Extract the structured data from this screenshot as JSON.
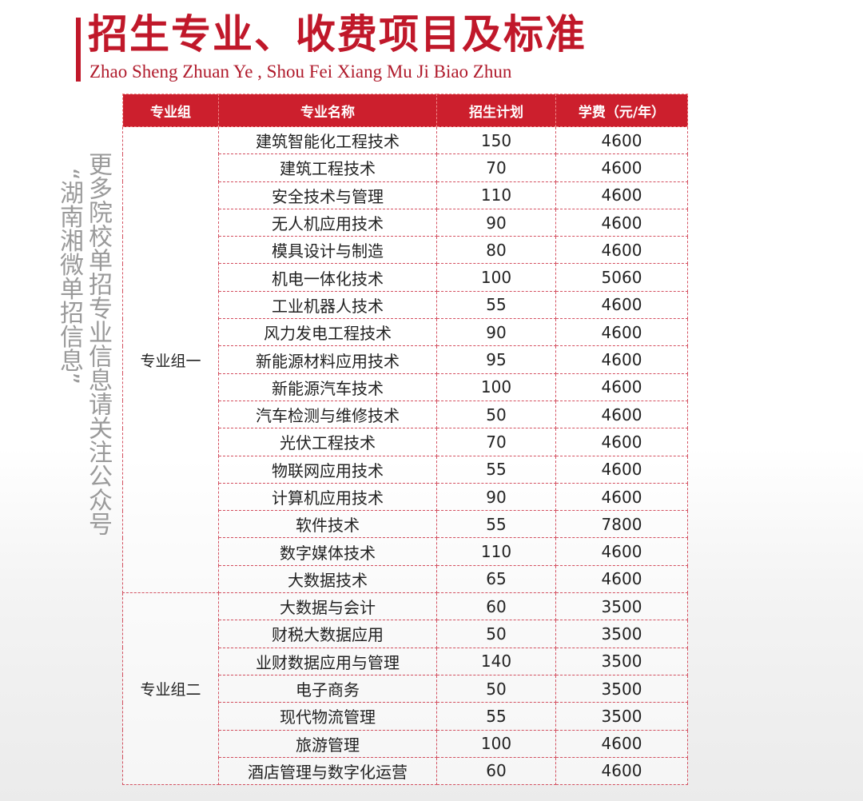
{
  "header": {
    "title": "招生专业、收费项目及标准",
    "subtitle": "Zhao Sheng Zhuan Ye , Shou Fei Xiang Mu Ji Biao Zhun"
  },
  "accent_color": "#c0182a",
  "table": {
    "columns": [
      "专业组",
      "专业名称",
      "招生计划",
      "学费（元/年）"
    ],
    "groups": [
      {
        "name": "专业组一",
        "rows": [
          [
            "建筑智能化工程技术",
            "150",
            "4600"
          ],
          [
            "建筑工程技术",
            "70",
            "4600"
          ],
          [
            "安全技术与管理",
            "110",
            "4600"
          ],
          [
            "无人机应用技术",
            "90",
            "4600"
          ],
          [
            "模具设计与制造",
            "80",
            "4600"
          ],
          [
            "机电一体化技术",
            "100",
            "5060"
          ],
          [
            "工业机器人技术",
            "55",
            "4600"
          ],
          [
            "风力发电工程技术",
            "90",
            "4600"
          ],
          [
            "新能源材料应用技术",
            "95",
            "4600"
          ],
          [
            "新能源汽车技术",
            "100",
            "4600"
          ],
          [
            "汽车检测与维修技术",
            "50",
            "4600"
          ],
          [
            "光伏工程技术",
            "70",
            "4600"
          ],
          [
            "物联网应用技术",
            "55",
            "4600"
          ],
          [
            "计算机应用技术",
            "90",
            "4600"
          ],
          [
            "软件技术",
            "55",
            "7800"
          ],
          [
            "数字媒体技术",
            "110",
            "4600"
          ],
          [
            "大数据技术",
            "65",
            "4600"
          ]
        ]
      },
      {
        "name": "专业组二",
        "rows": [
          [
            "大数据与会计",
            "60",
            "3500"
          ],
          [
            "财税大数据应用",
            "50",
            "3500"
          ],
          [
            "业财数据应用与管理",
            "140",
            "3500"
          ],
          [
            "电子商务",
            "50",
            "3500"
          ],
          [
            "现代物流管理",
            "55",
            "3500"
          ],
          [
            "旅游管理",
            "100",
            "4600"
          ],
          [
            "酒店管理与数字化运营",
            "60",
            "4600"
          ]
        ]
      }
    ]
  },
  "watermark": {
    "line1": "更多院校单招专业信息请关注公众号",
    "line2": "“湖南湘微单招信息”"
  }
}
